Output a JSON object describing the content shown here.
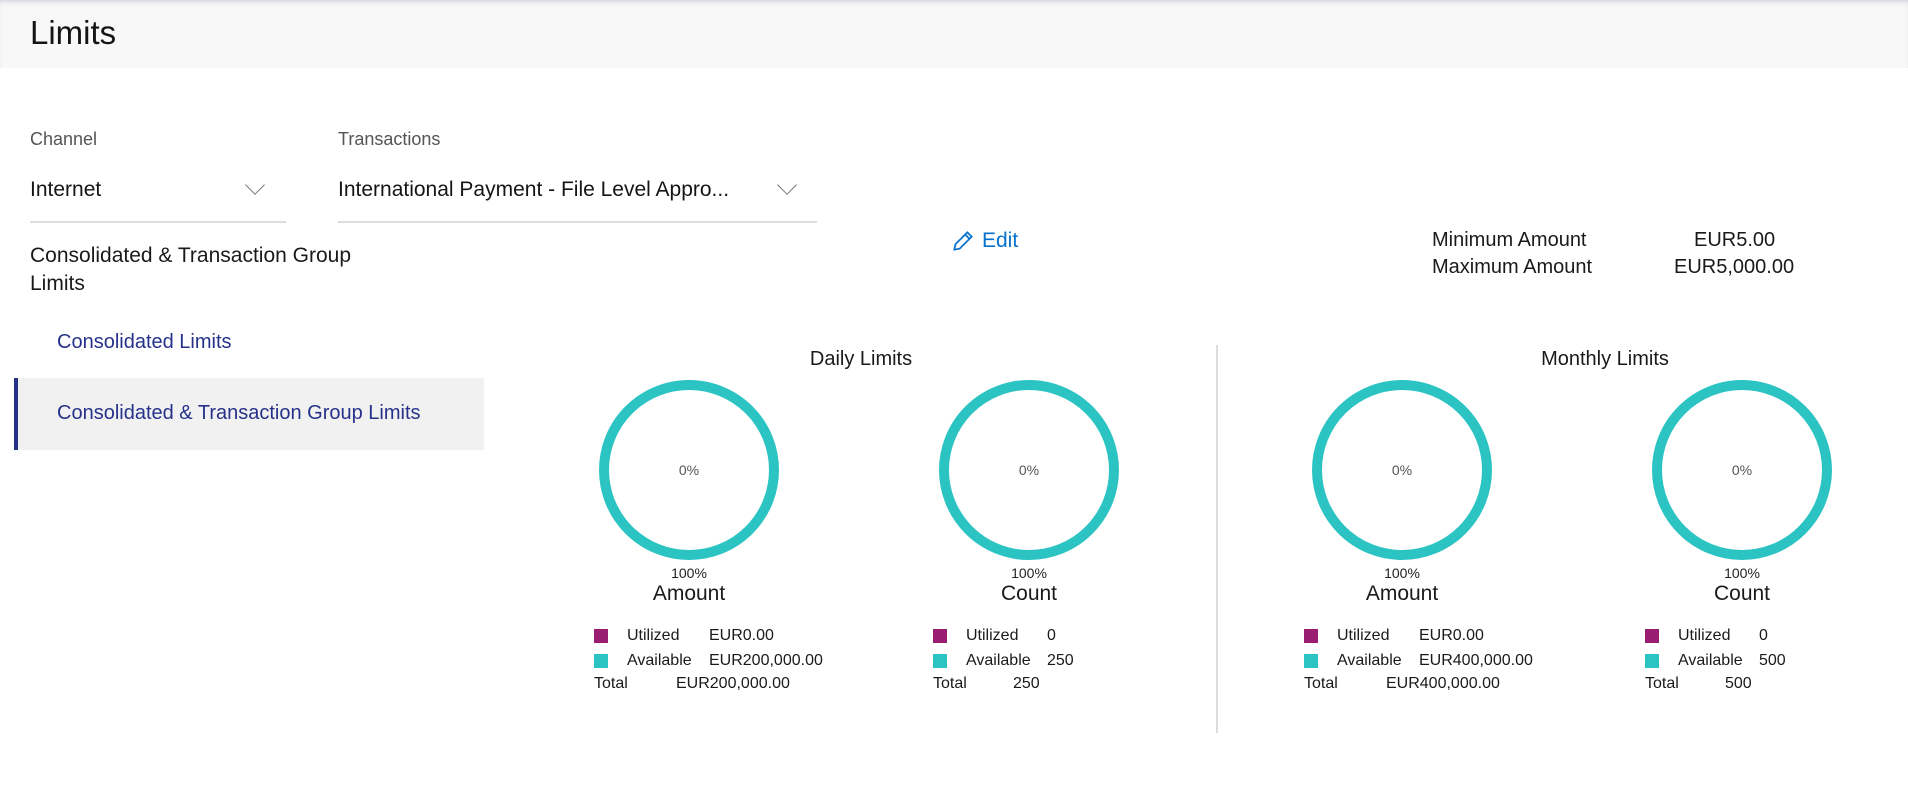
{
  "page": {
    "title": "Limits"
  },
  "filters": {
    "channel_label": "Channel",
    "channel_value": "Internet",
    "transactions_label": "Transactions",
    "transactions_value": "International Payment - File Level Appro..."
  },
  "sidebar": {
    "heading": "Consolidated & Transaction Group Limits",
    "items": [
      {
        "label": "Consolidated Limits",
        "selected": false
      },
      {
        "label": "Consolidated & Transaction Group Limits",
        "selected": true
      }
    ]
  },
  "edit_label": "Edit",
  "amounts": {
    "min_label": "Minimum Amount",
    "min_value": "EUR5.00",
    "max_label": "Maximum Amount",
    "max_value": "EUR5,000.00"
  },
  "colors": {
    "utilized": "#9b1d72",
    "available": "#2bc4c3",
    "accent": "#26328a",
    "link": "#0572ce"
  },
  "daily": {
    "title": "Daily Limits",
    "amount": {
      "center": "0%",
      "bottom": "100%",
      "caption": "Amount",
      "utilized_label": "Utilized",
      "utilized": "EUR0.00",
      "available_label": "Available",
      "available": "EUR200,000.00",
      "total_label": "Total",
      "total": "EUR200,000.00"
    },
    "count": {
      "center": "0%",
      "bottom": "100%",
      "caption": "Count",
      "utilized_label": "Utilized",
      "utilized": "0",
      "available_label": "Available",
      "available": "250",
      "total_label": "Total",
      "total": "250"
    }
  },
  "monthly": {
    "title": "Monthly Limits",
    "amount": {
      "center": "0%",
      "bottom": "100%",
      "caption": "Amount",
      "utilized_label": "Utilized",
      "utilized": "EUR0.00",
      "available_label": "Available",
      "available": "EUR400,000.00",
      "total_label": "Total",
      "total": "EUR400,000.00"
    },
    "count": {
      "center": "0%",
      "bottom": "100%",
      "caption": "Count",
      "utilized_label": "Utilized",
      "utilized": "0",
      "available_label": "Available",
      "available": "500",
      "total_label": "Total",
      "total": "500"
    }
  }
}
